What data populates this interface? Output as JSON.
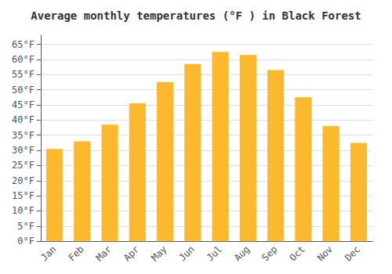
{
  "chart_data": {
    "type": "bar",
    "title": "Average monthly temperatures (°F ) in Black Forest",
    "categories": [
      "Jan",
      "Feb",
      "Mar",
      "Apr",
      "May",
      "Jun",
      "Jul",
      "Aug",
      "Sep",
      "Oct",
      "Nov",
      "Dec"
    ],
    "values": [
      30.5,
      33.0,
      38.5,
      45.5,
      52.5,
      58.5,
      62.5,
      61.5,
      56.5,
      47.5,
      38.0,
      32.5
    ],
    "color": "#FDB92E",
    "ylim": [
      0,
      68
    ],
    "yticks": [
      {
        "value": 0,
        "label": "0°F"
      },
      {
        "value": 5,
        "label": "5°F"
      },
      {
        "value": 10,
        "label": "10°F"
      },
      {
        "value": 15,
        "label": "15°F"
      },
      {
        "value": 20,
        "label": "20°F"
      },
      {
        "value": 25,
        "label": "25°F"
      },
      {
        "value": 30,
        "label": "30°F"
      },
      {
        "value": 35,
        "label": "35°F"
      },
      {
        "value": 40,
        "label": "40°F"
      },
      {
        "value": 45,
        "label": "45°F"
      },
      {
        "value": 50,
        "label": "50°F"
      },
      {
        "value": 55,
        "label": "55°F"
      },
      {
        "value": 60,
        "label": "60°F"
      },
      {
        "value": 65,
        "label": "65°F"
      }
    ],
    "grid": true
  }
}
